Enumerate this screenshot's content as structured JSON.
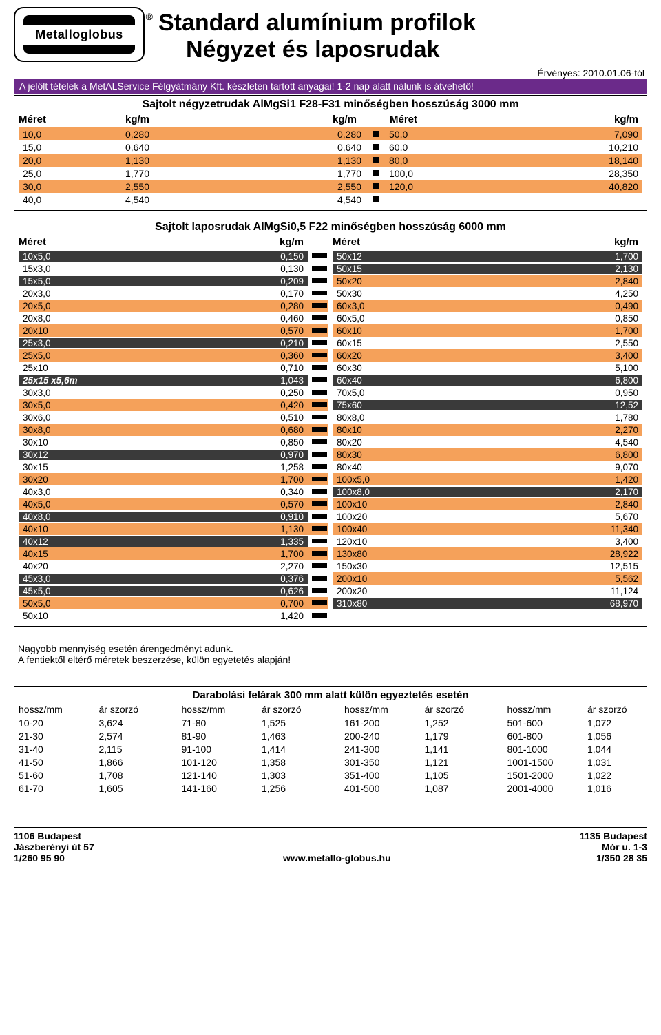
{
  "logo_text": "Metalloglobus",
  "title_line1": "Standard alumínium profilok",
  "title_line2": "Négyzet és laposrudak",
  "valid_from": "Érvényes: 2010.01.06-tól",
  "banner": "A jelölt tételek a MetALService Félgyátmány Kft. készleten tartott anyagai! 1-2 nap alatt nálunk is átvehető!",
  "colors": {
    "banner_bg": "#6b2a8a",
    "stripe_orange": "#f5a15a",
    "highlight_dark": "#3a3a3a"
  },
  "section1": {
    "title": "Sajtolt négyzetrudak AlMgSi1 F28-F31 minőségben   hosszúság 3000 mm",
    "headers": {
      "meret": "Méret",
      "kgm": "kg/m"
    },
    "rows_left": [
      {
        "m": "10,0",
        "v1": "0,280",
        "v2": "0,280",
        "hl": true
      },
      {
        "m": "15,0",
        "v1": "0,640",
        "v2": "0,640",
        "hl": false
      },
      {
        "m": "20,0",
        "v1": "1,130",
        "v2": "1,130",
        "hl": true
      },
      {
        "m": "25,0",
        "v1": "1,770",
        "v2": "1,770",
        "hl": false
      },
      {
        "m": "30,0",
        "v1": "2,550",
        "v2": "2,550",
        "hl": true
      },
      {
        "m": "40,0",
        "v1": "4,540",
        "v2": "4,540",
        "hl": false
      }
    ],
    "rows_right": [
      {
        "m": "50,0",
        "v": "7,090",
        "hl": true
      },
      {
        "m": "60,0",
        "v": "10,210",
        "hl": false
      },
      {
        "m": "80,0",
        "v": "18,140",
        "hl": true
      },
      {
        "m": "100,0",
        "v": "28,350",
        "hl": false
      },
      {
        "m": "120,0",
        "v": "40,820",
        "hl": true
      },
      {
        "m": "",
        "v": "",
        "hl": false
      }
    ]
  },
  "section2": {
    "title": "Sajtolt laposrudak AlMgSi0,5 F22 minőségben   hosszúság 6000 mm",
    "headers": {
      "meret": "Méret",
      "kgm": "kg/m"
    },
    "left": [
      {
        "m": "10x5,0",
        "v": "0,150",
        "hl": "dark"
      },
      {
        "m": "15x3,0",
        "v": "0,130",
        "hl": ""
      },
      {
        "m": "15x5,0",
        "v": "0,209",
        "hl": "dark"
      },
      {
        "m": "20x3,0",
        "v": "0,170",
        "hl": ""
      },
      {
        "m": "20x5,0",
        "v": "0,280",
        "hl": "orange"
      },
      {
        "m": "20x8,0",
        "v": "0,460",
        "hl": ""
      },
      {
        "m": "20x10",
        "v": "0,570",
        "hl": "orange"
      },
      {
        "m": "25x3,0",
        "v": "0,210",
        "hl": "dark"
      },
      {
        "m": "25x5,0",
        "v": "0,360",
        "hl": "orange"
      },
      {
        "m": "25x10",
        "v": "0,710",
        "hl": ""
      },
      {
        "m": "25x15 x5,6m",
        "v": "1,043",
        "hl": "dark",
        "italic": true
      },
      {
        "m": "30x3,0",
        "v": "0,250",
        "hl": ""
      },
      {
        "m": "30x5,0",
        "v": "0,420",
        "hl": "orange"
      },
      {
        "m": "30x6,0",
        "v": "0,510",
        "hl": ""
      },
      {
        "m": "30x8,0",
        "v": "0,680",
        "hl": "orange"
      },
      {
        "m": "30x10",
        "v": "0,850",
        "hl": ""
      },
      {
        "m": "30x12",
        "v": "0,970",
        "hl": "dark"
      },
      {
        "m": "30x15",
        "v": "1,258",
        "hl": ""
      },
      {
        "m": "30x20",
        "v": "1,700",
        "hl": "orange"
      },
      {
        "m": "40x3,0",
        "v": "0,340",
        "hl": ""
      },
      {
        "m": "40x5,0",
        "v": "0,570",
        "hl": "orange"
      },
      {
        "m": "40x8,0",
        "v": "0,910",
        "hl": "dark"
      },
      {
        "m": "40x10",
        "v": "1,130",
        "hl": "orange"
      },
      {
        "m": "40x12",
        "v": "1,335",
        "hl": "dark"
      },
      {
        "m": "40x15",
        "v": "1,700",
        "hl": "orange"
      },
      {
        "m": "40x20",
        "v": "2,270",
        "hl": ""
      },
      {
        "m": "45x3,0",
        "v": "0,376",
        "hl": "dark"
      },
      {
        "m": "45x5,0",
        "v": "0,626",
        "hl": "dark"
      },
      {
        "m": "50x5,0",
        "v": "0,700",
        "hl": "orange"
      },
      {
        "m": "50x10",
        "v": "1,420",
        "hl": ""
      }
    ],
    "right": [
      {
        "m": "50x12",
        "v": "1,700",
        "hl": "dark"
      },
      {
        "m": "50x15",
        "v": "2,130",
        "hl": "dark"
      },
      {
        "m": "50x20",
        "v": "2,840",
        "hl": "orange"
      },
      {
        "m": "50x30",
        "v": "4,250",
        "hl": ""
      },
      {
        "m": "60x3,0",
        "v": "0,490",
        "hl": "orange"
      },
      {
        "m": "60x5,0",
        "v": "0,850",
        "hl": ""
      },
      {
        "m": "60x10",
        "v": "1,700",
        "hl": "orange"
      },
      {
        "m": "60x15",
        "v": "2,550",
        "hl": ""
      },
      {
        "m": "60x20",
        "v": "3,400",
        "hl": "orange"
      },
      {
        "m": "60x30",
        "v": "5,100",
        "hl": ""
      },
      {
        "m": "60x40",
        "v": "6,800",
        "hl": "dark"
      },
      {
        "m": "70x5,0",
        "v": "0,950",
        "hl": ""
      },
      {
        "m": "75x60",
        "v": "12,52",
        "hl": "dark"
      },
      {
        "m": "80x8,0",
        "v": "1,780",
        "hl": ""
      },
      {
        "m": "80x10",
        "v": "2,270",
        "hl": "orange"
      },
      {
        "m": "80x20",
        "v": "4,540",
        "hl": ""
      },
      {
        "m": "80x30",
        "v": "6,800",
        "hl": "orange"
      },
      {
        "m": "80x40",
        "v": "9,070",
        "hl": ""
      },
      {
        "m": "100x5,0",
        "v": "1,420",
        "hl": "orange"
      },
      {
        "m": "100x8,0",
        "v": "2,170",
        "hl": "dark"
      },
      {
        "m": "100x10",
        "v": "2,840",
        "hl": "orange"
      },
      {
        "m": "100x20",
        "v": "5,670",
        "hl": ""
      },
      {
        "m": "100x40",
        "v": "11,340",
        "hl": "orange"
      },
      {
        "m": "120x10",
        "v": "3,400",
        "hl": ""
      },
      {
        "m": "130x80",
        "v": "28,922",
        "hl": "orange"
      },
      {
        "m": "150x30",
        "v": "12,515",
        "hl": ""
      },
      {
        "m": "200x10",
        "v": "5,562",
        "hl": "orange"
      },
      {
        "m": "200x20",
        "v": "11,124",
        "hl": ""
      },
      {
        "m": "310x80",
        "v": "68,970",
        "hl": "dark"
      }
    ]
  },
  "note1": "Nagyobb mennyiség esetén árengedményt adunk.",
  "note2": "A fentiektől eltérő méretek beszerzése, külön egyetetés alapján!",
  "section3": {
    "title": "Darabolási felárak 300 mm alatt külön egyeztetés esetén",
    "headers": {
      "h1": "hossz/mm",
      "h2": "ár szorzó"
    },
    "groups": [
      [
        {
          "r": "10-20",
          "v": "3,624"
        },
        {
          "r": "21-30",
          "v": "2,574"
        },
        {
          "r": "31-40",
          "v": "2,115"
        },
        {
          "r": "41-50",
          "v": "1,866"
        },
        {
          "r": "51-60",
          "v": "1,708"
        },
        {
          "r": "61-70",
          "v": "1,605"
        }
      ],
      [
        {
          "r": "71-80",
          "v": "1,525"
        },
        {
          "r": "81-90",
          "v": "1,463"
        },
        {
          "r": "91-100",
          "v": "1,414"
        },
        {
          "r": "101-120",
          "v": "1,358"
        },
        {
          "r": "121-140",
          "v": "1,303"
        },
        {
          "r": "141-160",
          "v": "1,256"
        }
      ],
      [
        {
          "r": "161-200",
          "v": "1,252"
        },
        {
          "r": "200-240",
          "v": "1,179"
        },
        {
          "r": "241-300",
          "v": "1,141"
        },
        {
          "r": "301-350",
          "v": "1,121"
        },
        {
          "r": "351-400",
          "v": "1,105"
        },
        {
          "r": "401-500",
          "v": "1,087"
        }
      ],
      [
        {
          "r": "501-600",
          "v": "1,072"
        },
        {
          "r": "601-800",
          "v": "1,056"
        },
        {
          "r": "801-1000",
          "v": "1,044"
        },
        {
          "r": "1001-1500",
          "v": "1,031"
        },
        {
          "r": "1501-2000",
          "v": "1,022"
        },
        {
          "r": "2001-4000",
          "v": "1,016"
        }
      ]
    ]
  },
  "footer": {
    "left": [
      "1106 Budapest",
      "Jászberényi út 57",
      "1/260 95 90"
    ],
    "mid": "www.metallo-globus.hu",
    "right": [
      "1135 Budapest",
      "Mór u. 1-3",
      "1/350 28 35"
    ]
  }
}
